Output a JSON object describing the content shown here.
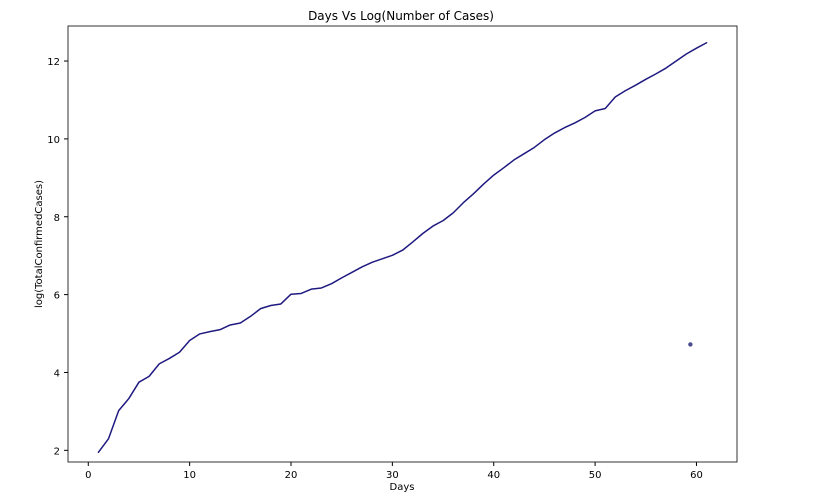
{
  "chart_data": {
    "type": "line",
    "title": "Days Vs Log(Number of Cases)",
    "xlabel": "Days",
    "ylabel": "log(TotalConfirmedCases)",
    "xlim": [
      -2,
      64
    ],
    "ylim": [
      1.7,
      12.9
    ],
    "xticks": [
      0,
      10,
      20,
      30,
      40,
      50,
      60
    ],
    "yticks": [
      2,
      4,
      6,
      8,
      10,
      12
    ],
    "grid": false,
    "series": [
      {
        "color": "#1f1a80",
        "x": [
          1,
          2,
          3,
          4,
          5,
          6,
          7,
          8,
          9,
          10,
          11,
          12,
          13,
          14,
          15,
          16,
          17,
          18,
          19,
          20,
          21,
          22,
          23,
          24,
          25,
          26,
          27,
          28,
          29,
          30,
          31,
          32,
          33,
          34,
          35,
          36,
          37,
          38,
          39,
          40,
          41,
          42,
          43,
          44,
          45,
          46,
          47,
          48,
          49,
          50,
          51,
          52,
          53,
          54,
          55,
          56,
          57,
          58,
          59,
          60,
          61
        ],
        "y": [
          1.95,
          2.3,
          3.02,
          3.33,
          3.75,
          3.9,
          4.22,
          4.36,
          4.52,
          4.82,
          4.99,
          5.05,
          5.1,
          5.22,
          5.27,
          5.44,
          5.64,
          5.72,
          5.76,
          6.01,
          6.03,
          6.14,
          6.17,
          6.28,
          6.43,
          6.57,
          6.71,
          6.83,
          6.92,
          7.01,
          7.14,
          7.35,
          7.57,
          7.76,
          7.9,
          8.1,
          8.36,
          8.59,
          8.84,
          9.07,
          9.26,
          9.46,
          9.62,
          9.78,
          9.98,
          10.15,
          10.29,
          10.41,
          10.55,
          10.72,
          10.78,
          11.08,
          11.24,
          11.38,
          11.53,
          11.67,
          11.82,
          12.0,
          12.18,
          12.33,
          12.47
        ]
      }
    ],
    "points": [
      {
        "x": 59.4,
        "y": 4.72,
        "color": "#4c4c90"
      }
    ]
  }
}
